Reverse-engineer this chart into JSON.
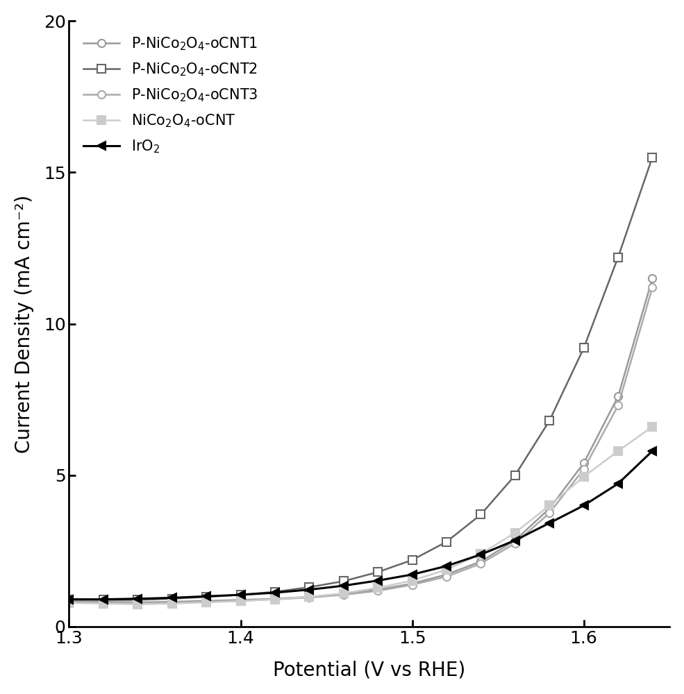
{
  "title": "",
  "xlabel": "Potential (V vs RHE)",
  "ylabel": "Current Density (mA cm⁻²)",
  "xlim": [
    1.3,
    1.65
  ],
  "ylim": [
    0,
    20
  ],
  "yticks": [
    0,
    5,
    10,
    15,
    20
  ],
  "xticks": [
    1.3,
    1.4,
    1.5,
    1.6
  ],
  "series": [
    {
      "name": "P-NiCo$_2$O$_4$-oCNT1",
      "color": "#999999",
      "marker": "o",
      "markersize": 8,
      "linewidth": 1.8,
      "markerfacecolor": "white",
      "markeredgecolor": "#999999",
      "markeredgewidth": 1.5,
      "x": [
        1.3,
        1.32,
        1.34,
        1.36,
        1.38,
        1.4,
        1.42,
        1.44,
        1.46,
        1.48,
        1.5,
        1.52,
        1.54,
        1.56,
        1.58,
        1.6,
        1.62,
        1.64
      ],
      "y": [
        0.85,
        0.82,
        0.8,
        0.82,
        0.85,
        0.88,
        0.92,
        0.98,
        1.08,
        1.22,
        1.42,
        1.72,
        2.15,
        2.85,
        3.9,
        5.4,
        7.6,
        11.5
      ]
    },
    {
      "name": "P-NiCo$_2$O$_4$-oCNT2",
      "color": "#666666",
      "marker": "s",
      "markersize": 8,
      "linewidth": 1.8,
      "markerfacecolor": "white",
      "markeredgecolor": "#666666",
      "markeredgewidth": 1.5,
      "x": [
        1.3,
        1.32,
        1.34,
        1.36,
        1.38,
        1.4,
        1.42,
        1.44,
        1.46,
        1.48,
        1.5,
        1.52,
        1.54,
        1.56,
        1.58,
        1.6,
        1.62,
        1.64
      ],
      "y": [
        0.9,
        0.88,
        0.88,
        0.92,
        0.98,
        1.05,
        1.15,
        1.3,
        1.5,
        1.8,
        2.2,
        2.8,
        3.7,
        5.0,
        6.8,
        9.2,
        12.2,
        15.5
      ]
    },
    {
      "name": "P-NiCo$_2$O$_4$-oCNT3",
      "color": "#aaaaaa",
      "marker": "o",
      "markersize": 8,
      "linewidth": 1.8,
      "markerfacecolor": "white",
      "markeredgecolor": "#aaaaaa",
      "markeredgewidth": 1.5,
      "x": [
        1.3,
        1.32,
        1.34,
        1.36,
        1.38,
        1.4,
        1.42,
        1.44,
        1.46,
        1.48,
        1.5,
        1.52,
        1.54,
        1.56,
        1.58,
        1.6,
        1.62,
        1.64
      ],
      "y": [
        0.82,
        0.8,
        0.78,
        0.8,
        0.82,
        0.86,
        0.9,
        0.96,
        1.05,
        1.18,
        1.38,
        1.65,
        2.08,
        2.75,
        3.75,
        5.2,
        7.3,
        11.2
      ]
    },
    {
      "name": "NiCo$_2$O$_4$-oCNT",
      "color": "#cccccc",
      "marker": "s",
      "markersize": 8,
      "linewidth": 1.8,
      "markerfacecolor": "#cccccc",
      "markeredgecolor": "#cccccc",
      "markeredgewidth": 1.5,
      "x": [
        1.3,
        1.32,
        1.34,
        1.36,
        1.38,
        1.4,
        1.42,
        1.44,
        1.46,
        1.48,
        1.5,
        1.52,
        1.54,
        1.56,
        1.58,
        1.6,
        1.62,
        1.64
      ],
      "y": [
        0.78,
        0.76,
        0.74,
        0.76,
        0.8,
        0.84,
        0.9,
        0.98,
        1.1,
        1.28,
        1.52,
        1.88,
        2.4,
        3.1,
        4.0,
        4.95,
        5.8,
        6.6
      ]
    },
    {
      "name": "IrO$_2$",
      "color": "#000000",
      "marker": "<",
      "markersize": 9,
      "linewidth": 2.2,
      "markerfacecolor": "#000000",
      "markeredgecolor": "#000000",
      "markeredgewidth": 1.5,
      "x": [
        1.3,
        1.32,
        1.34,
        1.36,
        1.38,
        1.4,
        1.42,
        1.44,
        1.46,
        1.48,
        1.5,
        1.52,
        1.54,
        1.56,
        1.58,
        1.6,
        1.62,
        1.64
      ],
      "y": [
        0.9,
        0.9,
        0.92,
        0.95,
        1.0,
        1.05,
        1.12,
        1.22,
        1.35,
        1.52,
        1.72,
        2.0,
        2.38,
        2.85,
        3.42,
        4.0,
        4.72,
        5.8
      ]
    }
  ],
  "legend_fontsize": 15,
  "axis_fontsize": 20,
  "tick_fontsize": 18,
  "background_color": "#ffffff"
}
